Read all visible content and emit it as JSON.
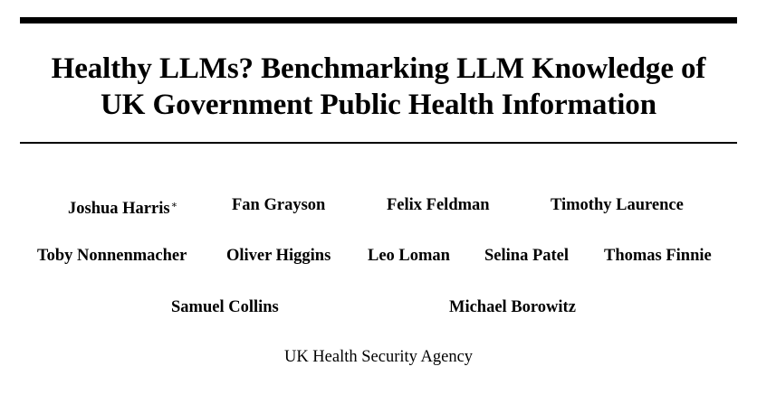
{
  "paper": {
    "title_line1": "Healthy LLMs? Benchmarking LLM Knowledge of",
    "title_line2": "UK Government Public Health Information",
    "authors": [
      {
        "name": "Joshua Harris",
        "mark": "∗"
      },
      {
        "name": "Fan Grayson"
      },
      {
        "name": "Felix Feldman"
      },
      {
        "name": "Timothy Laurence"
      },
      {
        "name": "Toby Nonnenmacher"
      },
      {
        "name": "Oliver Higgins"
      },
      {
        "name": "Leo Loman"
      },
      {
        "name": "Selina Patel"
      },
      {
        "name": "Thomas Finnie"
      },
      {
        "name": "Samuel Collins"
      },
      {
        "name": "Michael Borowitz"
      }
    ],
    "affiliation": "UK Health Security Agency"
  }
}
